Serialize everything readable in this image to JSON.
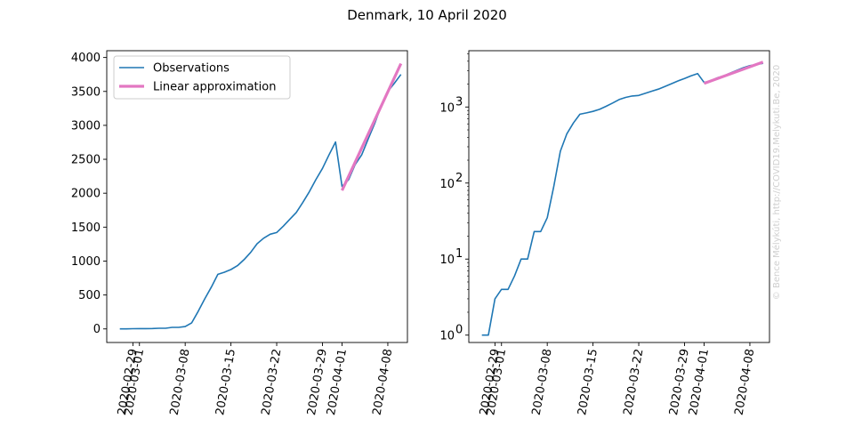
{
  "figure": {
    "title": "Denmark, 10 April 2020",
    "watermark": "© Bence Mélykúti, http://COVID19.Melykuti.Be, 2020"
  },
  "colors": {
    "observations": "#1f77b4",
    "approximation": "#e377c2"
  },
  "legend": {
    "items": [
      {
        "label": "Observations",
        "color": "#1f77b4"
      },
      {
        "label": "Linear approximation",
        "color": "#e377c2"
      }
    ],
    "placement": "upper-left"
  },
  "chart_data": [
    {
      "type": "line",
      "scale": "linear",
      "title": "",
      "xlabel": "",
      "ylabel": "",
      "xlim": [
        "2020-02-25",
        "2020-04-11"
      ],
      "ylim": [
        -200,
        4100
      ],
      "x_ticks": [
        "2020-02-29",
        "2020-03-01",
        "2020-03-08",
        "2020-03-15",
        "2020-03-22",
        "2020-03-29",
        "2020-04-01",
        "2020-04-08"
      ],
      "y_ticks": [
        0,
        500,
        1000,
        1500,
        2000,
        2500,
        3000,
        3500,
        4000
      ],
      "y_tick_labels": [
        "0",
        "500",
        "1000",
        "1500",
        "2000",
        "2500",
        "3000",
        "3500",
        "4000"
      ],
      "grid": false,
      "legend": "upper-left",
      "series": [
        {
          "name": "Observations",
          "x": [
            "2020-02-27",
            "2020-02-28",
            "2020-02-29",
            "2020-03-01",
            "2020-03-02",
            "2020-03-03",
            "2020-03-04",
            "2020-03-05",
            "2020-03-06",
            "2020-03-07",
            "2020-03-08",
            "2020-03-09",
            "2020-03-10",
            "2020-03-11",
            "2020-03-12",
            "2020-03-13",
            "2020-03-14",
            "2020-03-15",
            "2020-03-16",
            "2020-03-17",
            "2020-03-18",
            "2020-03-19",
            "2020-03-20",
            "2020-03-21",
            "2020-03-22",
            "2020-03-23",
            "2020-03-24",
            "2020-03-25",
            "2020-03-26",
            "2020-03-27",
            "2020-03-28",
            "2020-03-29",
            "2020-03-30",
            "2020-03-31",
            "2020-04-01",
            "2020-04-02",
            "2020-04-03",
            "2020-04-04",
            "2020-04-05",
            "2020-04-06",
            "2020-04-07",
            "2020-04-08",
            "2020-04-09",
            "2020-04-10"
          ],
          "y": [
            1,
            1,
            3,
            4,
            4,
            6,
            10,
            10,
            23,
            23,
            35,
            90,
            262,
            444,
            617,
            804,
            836,
            875,
            933,
            1020,
            1127,
            1255,
            1337,
            1395,
            1420,
            1514,
            1615,
            1716,
            1863,
            2023,
            2200,
            2366,
            2564,
            2755,
            2100,
            2200,
            2420,
            2565,
            2800,
            3030,
            3290,
            3500,
            3620,
            3750
          ]
        },
        {
          "name": "Linear approximation",
          "x": [
            "2020-04-01",
            "2020-04-10"
          ],
          "y": [
            2040,
            3910
          ]
        }
      ]
    },
    {
      "type": "line",
      "scale": "log",
      "title": "",
      "xlabel": "",
      "ylabel": "",
      "xlim": [
        "2020-02-25",
        "2020-04-11"
      ],
      "ylim": [
        0.8,
        5500
      ],
      "x_ticks": [
        "2020-02-29",
        "2020-03-01",
        "2020-03-08",
        "2020-03-15",
        "2020-03-22",
        "2020-03-29",
        "2020-04-01",
        "2020-04-08"
      ],
      "y_ticks": [
        1,
        10,
        100,
        1000
      ],
      "y_tick_labels": [
        {
          "base": "10",
          "exp": "0"
        },
        {
          "base": "10",
          "exp": "1"
        },
        {
          "base": "10",
          "exp": "2"
        },
        {
          "base": "10",
          "exp": "3"
        }
      ],
      "grid": false,
      "legend": "none",
      "series": [
        {
          "name": "Observations",
          "x": [
            "2020-02-27",
            "2020-02-28",
            "2020-02-29",
            "2020-03-01",
            "2020-03-02",
            "2020-03-03",
            "2020-03-04",
            "2020-03-05",
            "2020-03-06",
            "2020-03-07",
            "2020-03-08",
            "2020-03-09",
            "2020-03-10",
            "2020-03-11",
            "2020-03-12",
            "2020-03-13",
            "2020-03-14",
            "2020-03-15",
            "2020-03-16",
            "2020-03-17",
            "2020-03-18",
            "2020-03-19",
            "2020-03-20",
            "2020-03-21",
            "2020-03-22",
            "2020-03-23",
            "2020-03-24",
            "2020-03-25",
            "2020-03-26",
            "2020-03-27",
            "2020-03-28",
            "2020-03-29",
            "2020-03-30",
            "2020-03-31",
            "2020-04-01",
            "2020-04-02",
            "2020-04-03",
            "2020-04-04",
            "2020-04-05",
            "2020-04-06",
            "2020-04-07",
            "2020-04-08",
            "2020-04-09",
            "2020-04-10"
          ],
          "y": [
            1,
            1,
            3,
            4,
            4,
            6,
            10,
            10,
            23,
            23,
            35,
            90,
            262,
            444,
            617,
            804,
            836,
            875,
            933,
            1020,
            1127,
            1255,
            1337,
            1395,
            1420,
            1514,
            1615,
            1716,
            1863,
            2023,
            2200,
            2366,
            2564,
            2755,
            2100,
            2200,
            2420,
            2565,
            2800,
            3030,
            3290,
            3500,
            3620,
            3750
          ]
        },
        {
          "name": "Linear approximation",
          "x": [
            "2020-04-01",
            "2020-04-10"
          ],
          "y": [
            2040,
            3910
          ]
        }
      ]
    }
  ]
}
